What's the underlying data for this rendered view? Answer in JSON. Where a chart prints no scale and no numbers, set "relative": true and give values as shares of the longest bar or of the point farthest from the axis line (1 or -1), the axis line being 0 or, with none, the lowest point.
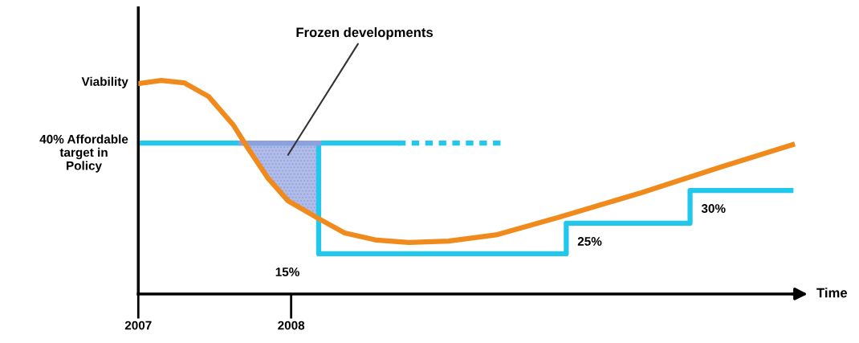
{
  "chart_data": {
    "type": "line",
    "relative": true,
    "xlabel": "Time",
    "xlim": [
      2007,
      2011.35
    ],
    "xticks": [
      2007,
      2008
    ],
    "series": [
      {
        "color": "#f08a1c",
        "x": [
          2007.0,
          2007.15,
          2007.3,
          2007.46,
          2007.62,
          2007.72,
          2007.85,
          2007.98,
          2008.18,
          2008.35,
          2008.56,
          2008.77,
          2009.03,
          2009.35,
          2009.76,
          2010.29,
          2010.81,
          2011.28
        ],
        "values": [
          0.985,
          1.0,
          0.989,
          0.925,
          0.793,
          0.68,
          0.541,
          0.436,
          0.353,
          0.286,
          0.252,
          0.241,
          0.248,
          0.278,
          0.361,
          0.474,
          0.594,
          0.699
        ]
      },
      {
        "color": "#22c8ec",
        "x": [
          2007.0,
          2008.18,
          2008.18,
          2009.8,
          2009.8,
          2010.61,
          2010.61,
          2011.27
        ],
        "values": [
          0.707,
          0.707,
          0.188,
          0.188,
          0.331,
          0.331,
          0.485,
          0.485
        ]
      },
      {
        "color": "#22c8ec",
        "x": [
          2008.18,
          2008.7
        ],
        "values": [
          0.707,
          0.707
        ]
      },
      {
        "color": "#22c8ec",
        "line_style": "dotted",
        "x": [
          2008.7,
          2009.37
        ],
        "values": [
          0.707,
          0.707
        ]
      },
      {
        "color": "#8fa0e0",
        "x": [
          2007.67,
          2007.72,
          2007.85,
          2007.98,
          2008.18
        ],
        "values": [
          0.707,
          0.707,
          0.707,
          0.707,
          0.707
        ],
        "lower": [
          0.707,
          0.68,
          0.541,
          0.436,
          0.353
        ],
        "upper": [
          0.707,
          0.707,
          0.707,
          0.707,
          0.707
        ]
      }
    ],
    "annotations": [
      "Frozen developments",
      {
        "text": "Viability",
        "x": 2007,
        "y": 0.99
      },
      {
        "text": "40% Affordable\ntarget in\nPolicy",
        "x": 2007,
        "y": 0.707
      },
      {
        "text": "15%",
        "x": 2008.18,
        "y": 0.188
      },
      {
        "text": "25%",
        "x": 2009.8,
        "y": 0.331
      },
      {
        "text": "30%",
        "x": 2010.61,
        "y": 0.485
      }
    ]
  }
}
